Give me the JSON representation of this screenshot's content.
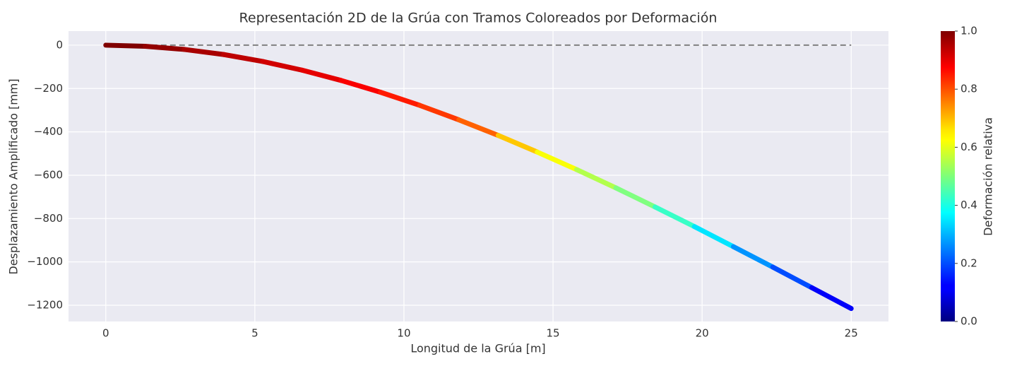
{
  "chart_data": {
    "type": "segmented-line",
    "title": "Representación 2D de la Grúa con Tramos Coloreados por Deformación",
    "xlabel": "Longitud de la Grúa [m]",
    "ylabel": "Desplazamiento Amplificado [mm]",
    "colorbar_label": "Deformación relativa",
    "colormap": "jet",
    "grid": true,
    "x": [
      0,
      1.32,
      2.63,
      3.95,
      5.26,
      6.58,
      7.89,
      9.21,
      10.53,
      11.84,
      13.16,
      14.47,
      15.79,
      17.11,
      18.42,
      19.74,
      21.05,
      22.37,
      23.68,
      25
    ],
    "series": [
      {
        "values": [
          0,
          -5,
          -19.5,
          -43,
          -75.1,
          -115.1,
          -162.6,
          -217,
          -277.7,
          -344.4,
          -416.3,
          -493,
          -573.9,
          -658.6,
          -746.5,
          -837,
          -929.7,
          -1023.9,
          -1119.1,
          -1215
        ]
      }
    ],
    "deformation": [
      1.0,
      0.98,
      0.96,
      0.94,
      0.92,
      0.9,
      0.88,
      0.85,
      0.82,
      0.78,
      0.68,
      0.62,
      0.55,
      0.5,
      0.43,
      0.35,
      0.27,
      0.2,
      0.12
    ],
    "reference": {
      "x": [
        0,
        25
      ],
      "values": [
        0,
        0
      ],
      "color": "#808080"
    },
    "xlim": [
      -1.25,
      26.25
    ],
    "xticks": [
      0,
      5,
      10,
      15,
      20,
      25
    ],
    "ylim": [
      -1275,
      65
    ],
    "yticks": [
      {
        "value": -1200,
        "label": "−1200"
      },
      {
        "value": -1000,
        "label": "−1000"
      },
      {
        "value": -800,
        "label": "−800"
      },
      {
        "value": -600,
        "label": "−600"
      },
      {
        "value": -400,
        "label": "−400"
      },
      {
        "value": -200,
        "label": "−200"
      },
      0
    ],
    "clim": [
      0,
      1
    ],
    "cticks": [
      {
        "value": 0,
        "label": "0.0"
      },
      0.2,
      0.4,
      0.6,
      0.8,
      {
        "value": 1,
        "label": "1.0"
      }
    ]
  }
}
